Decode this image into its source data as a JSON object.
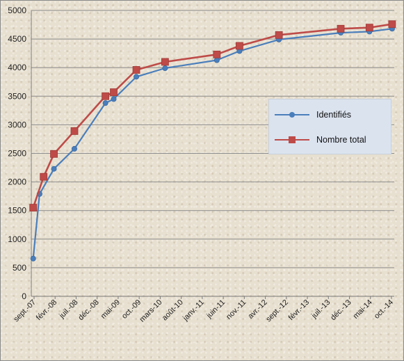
{
  "chart_data": {
    "type": "line",
    "title": "",
    "xlabel": "",
    "ylabel": "",
    "ylim": [
      0,
      5000
    ],
    "yticks": [
      0,
      500,
      1000,
      1500,
      2000,
      2500,
      3000,
      3500,
      4000,
      4500,
      5000
    ],
    "grid": true,
    "legend_position": "right",
    "x_tick_labels": [
      "sept.-07",
      "févr.-08",
      "juil.-08",
      "déc.-08",
      "mai-09",
      "oct.-09",
      "mars-10",
      "août-10",
      "janv.-11",
      "juin-11",
      "nov.-11",
      "avr.-12",
      "sept.-12",
      "févr.-13",
      "juil.-13",
      "déc.-13",
      "mai-14",
      "oct.-14"
    ],
    "series": [
      {
        "name": "Identifiés",
        "color": "#4a7ebb",
        "marker": "circle",
        "x": [
          "2007-09-15",
          "2007-11-01",
          "2008-02-15",
          "2008-07-15",
          "2009-03-01",
          "2009-05-01",
          "2009-10-15",
          "2010-05-15",
          "2011-06-01",
          "2011-11-15",
          "2012-09-01",
          "2013-12-01",
          "2014-07-01",
          "2014-12-15"
        ],
        "values": [
          660,
          1790,
          2230,
          2580,
          3380,
          3450,
          3840,
          3990,
          4130,
          4290,
          4490,
          4610,
          4630,
          4680
        ]
      },
      {
        "name": "Nombre total",
        "color": "#be4b48",
        "marker": "square",
        "x": [
          "2007-09-15",
          "2007-12-01",
          "2008-02-15",
          "2008-07-15",
          "2009-03-01",
          "2009-05-01",
          "2009-10-15",
          "2010-05-15",
          "2011-06-01",
          "2011-11-15",
          "2012-09-01",
          "2013-12-01",
          "2014-07-01",
          "2014-12-15"
        ],
        "values": [
          1550,
          2090,
          2490,
          2890,
          3500,
          3570,
          3960,
          4100,
          4230,
          4380,
          4570,
          4680,
          4700,
          4760
        ]
      }
    ]
  },
  "legend": {
    "items": [
      {
        "label": "Identifiés",
        "color": "#4a7ebb",
        "marker": "circle"
      },
      {
        "label": "Nombre total",
        "color": "#be4b48",
        "marker": "square"
      }
    ]
  }
}
